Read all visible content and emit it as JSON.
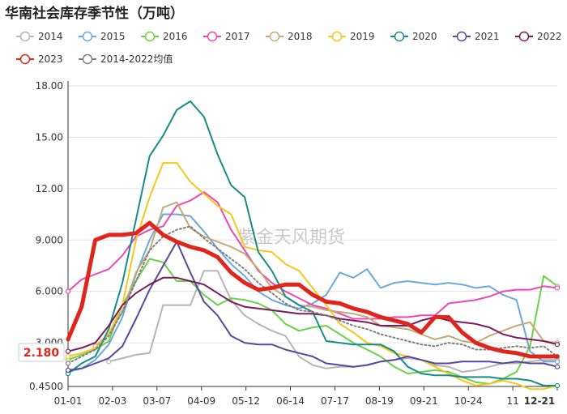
{
  "chart_data": {
    "type": "line",
    "title": "华南社会库存季节性（万吨）",
    "watermark": "紫金天风期货",
    "y_ticks": [
      "0.4500",
      "3.000",
      "6.000",
      "9.000",
      "12.00",
      "15.00",
      "18.00"
    ],
    "ylim": [
      0.45,
      18.0
    ],
    "x_ticks": [
      "01-01",
      "02-03",
      "03-07",
      "04-09",
      "05-12",
      "06-14",
      "07-17",
      "08-19",
      "09-21",
      "10-24",
      "11",
      "12-21"
    ],
    "x_highlight": "12-21",
    "last_value_label": "2.180",
    "series": [
      {
        "name": "2014",
        "color": "#b5b5b5",
        "width": 2,
        "values": [
          null,
          null,
          null,
          1.9,
          2.1,
          2.3,
          2.4,
          5.2,
          5.2,
          5.2,
          7.2,
          7.2,
          5.5,
          4.6,
          4.1,
          3.7,
          3.4,
          2.2,
          1.7,
          1.5,
          1.6,
          1.6,
          1.7,
          1.9,
          2.0,
          2.1,
          2.0,
          1.7,
          1.6,
          1.3,
          1.4,
          1.6,
          1.8,
          1.8,
          1.9,
          2.0,
          2.0
        ]
      },
      {
        "name": "2015",
        "color": "#6aa8dc",
        "width": 2,
        "values": [
          1.3,
          1.5,
          2.0,
          2.9,
          4.5,
          7.0,
          9.0,
          10.5,
          10.5,
          10.4,
          9.5,
          8.5,
          7.6,
          6.9,
          6.0,
          5.5,
          5.2,
          5.0,
          5.3,
          5.8,
          7.1,
          6.8,
          7.3,
          6.2,
          6.5,
          6.6,
          6.5,
          6.4,
          6.5,
          6.4,
          6.2,
          6.3,
          5.8,
          5.5,
          2.5,
          1.9,
          1.9
        ]
      },
      {
        "name": "2016",
        "color": "#6cd04b",
        "width": 2,
        "values": [
          2.0,
          2.3,
          2.6,
          3.1,
          5.2,
          6.6,
          7.9,
          7.7,
          6.6,
          6.6,
          5.8,
          5.2,
          5.6,
          5.5,
          5.3,
          4.9,
          4.1,
          3.7,
          3.9,
          4.0,
          3.5,
          3.0,
          2.6,
          2.2,
          1.6,
          1.2,
          1.3,
          1.4,
          1.3,
          1.0,
          0.7,
          0.6,
          0.9,
          1.3,
          2.8,
          6.9,
          6.3
        ]
      },
      {
        "name": "2017",
        "color": "#ef46b6",
        "width": 2,
        "values": [
          6.0,
          6.7,
          7.0,
          7.3,
          8.1,
          9.2,
          9.6,
          9.8,
          11.0,
          11.3,
          11.8,
          11.2,
          9.6,
          8.4,
          7.2,
          6.5,
          6.0,
          5.6,
          5.2,
          5.0,
          4.7,
          4.4,
          4.4,
          4.4,
          4.5,
          4.5,
          4.6,
          4.6,
          5.3,
          5.4,
          5.5,
          5.7,
          6.0,
          6.1,
          6.1,
          6.3,
          6.2
        ]
      },
      {
        "name": "2018",
        "color": "#c2aa77",
        "width": 2,
        "values": [
          null,
          null,
          2.8,
          3.5,
          4.8,
          7.1,
          8.4,
          10.9,
          11.2,
          9.7,
          9.2,
          8.9,
          8.6,
          8.2,
          7.3,
          6.2,
          5.7,
          5.2,
          5.1,
          4.9,
          4.8,
          4.7,
          4.5,
          4.0,
          3.9,
          3.8,
          3.5,
          3.2,
          3.4,
          3.1,
          3.0,
          3.4,
          3.7,
          4.0,
          4.2,
          3.1,
          3.0
        ]
      },
      {
        "name": "2019",
        "color": "#f7c71d",
        "width": 2,
        "values": [
          2.2,
          2.4,
          2.7,
          3.5,
          5.2,
          9.0,
          11.5,
          13.5,
          13.5,
          12.4,
          11.7,
          11.0,
          10.5,
          8.6,
          8.4,
          8.3,
          7.6,
          7.2,
          6.2,
          5.2,
          4.1,
          3.6,
          3.0,
          2.8,
          2.4,
          2.2,
          2.0,
          1.6,
          1.2,
          0.8,
          0.5,
          0.6,
          0.8,
          0.6,
          0.3,
          0.3,
          0.5
        ]
      },
      {
        "name": "2020",
        "color": "#178b8b",
        "width": 2,
        "values": [
          1.2,
          1.8,
          2.2,
          3.8,
          6.5,
          10.2,
          13.9,
          15.1,
          16.6,
          17.1,
          16.2,
          14.0,
          12.2,
          11.5,
          8.3,
          7.2,
          5.7,
          5.2,
          4.8,
          3.1,
          3.0,
          2.9,
          2.9,
          2.9,
          2.5,
          1.6,
          1.2,
          1.1,
          1.1,
          1.0,
          1.0,
          1.0,
          0.9,
          0.9,
          0.8,
          0.5,
          0.5
        ]
      },
      {
        "name": "2021",
        "color": "#57469e",
        "width": 2,
        "values": [
          1.4,
          1.5,
          1.8,
          2.1,
          2.8,
          4.4,
          6.1,
          7.5,
          8.9,
          7.1,
          5.4,
          4.6,
          3.4,
          3.0,
          2.9,
          2.9,
          2.6,
          2.4,
          2.2,
          1.8,
          1.7,
          1.6,
          1.7,
          1.9,
          2.0,
          2.2,
          2.0,
          1.8,
          1.8,
          1.9,
          1.9,
          1.9,
          1.8,
          1.9,
          1.8,
          1.8,
          1.6
        ]
      },
      {
        "name": "2022",
        "color": "#7a1b5c",
        "width": 2,
        "values": [
          2.5,
          2.7,
          3.0,
          4.0,
          5.2,
          5.9,
          6.4,
          6.8,
          6.8,
          6.6,
          6.4,
          5.9,
          5.4,
          5.1,
          5.0,
          4.9,
          4.8,
          4.7,
          4.7,
          4.6,
          4.4,
          4.3,
          4.2,
          4.0,
          4.0,
          4.0,
          4.3,
          4.5,
          4.3,
          4.2,
          4.1,
          3.9,
          3.5,
          3.3,
          3.2,
          3.1,
          2.9
        ]
      },
      {
        "name": "2023",
        "color": "#e0251d",
        "width": 5,
        "values": [
          3.2,
          5.1,
          9.0,
          9.3,
          9.3,
          9.4,
          10.0,
          9.3,
          8.9,
          8.6,
          8.4,
          8.0,
          7.1,
          6.5,
          6.1,
          6.2,
          6.4,
          6.4,
          5.8,
          5.4,
          5.3,
          5.0,
          4.8,
          4.5,
          4.3,
          4.1,
          3.6,
          4.5,
          4.5,
          3.6,
          3.0,
          2.7,
          2.5,
          2.4,
          2.2,
          2.2,
          2.2
        ]
      },
      {
        "name": "2014-2022均值",
        "color": "#7f7f7f",
        "width": 2,
        "dashed": true,
        "values": [
          1.8,
          2.2,
          2.6,
          3.4,
          4.8,
          6.6,
          8.4,
          9.2,
          9.6,
          9.8,
          9.1,
          8.5,
          7.9,
          7.3,
          6.5,
          5.9,
          5.3,
          4.9,
          4.8,
          4.6,
          4.3,
          4.0,
          3.8,
          3.5,
          3.3,
          3.1,
          2.9,
          2.8,
          3.0,
          2.9,
          2.6,
          2.6,
          2.7,
          2.8,
          2.7,
          2.8,
          2.2
        ]
      }
    ]
  }
}
